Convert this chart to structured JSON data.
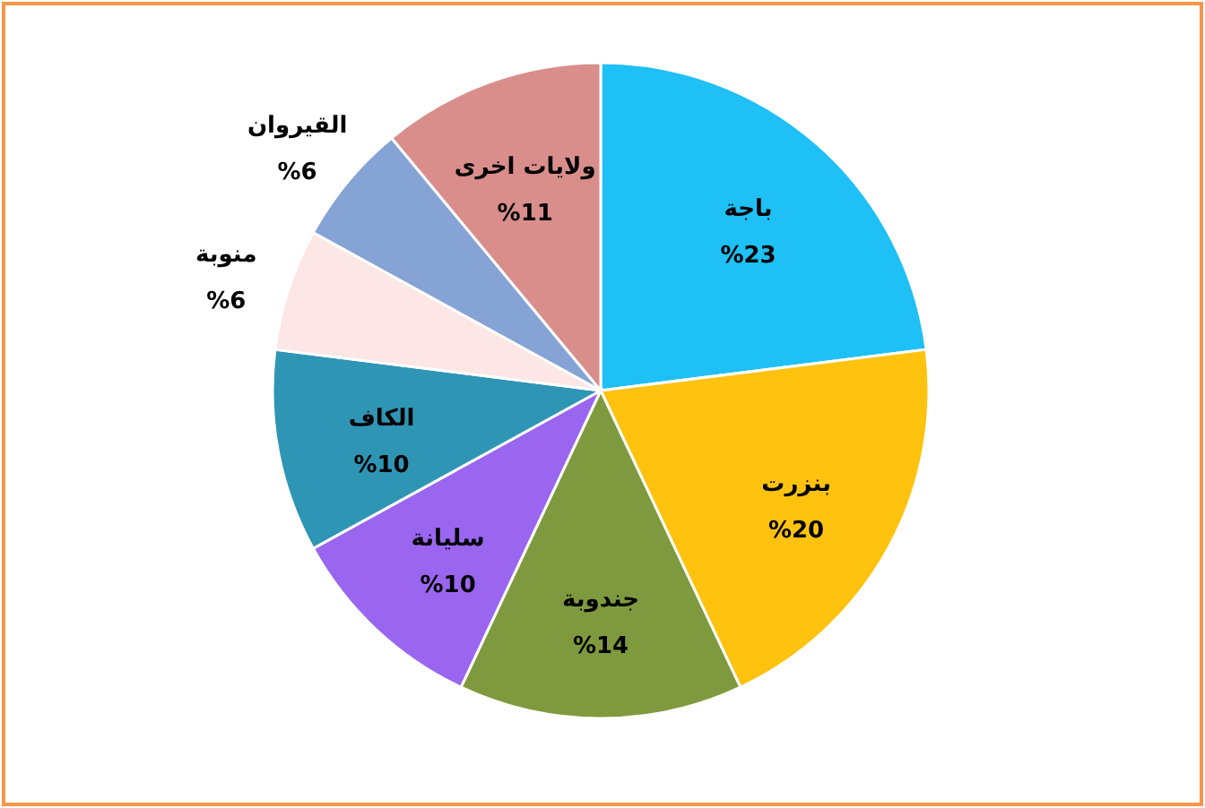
{
  "chart_data": {
    "type": "pie",
    "categories": [
      "باجة",
      "بنزرت",
      "جندوبة",
      "سليانة",
      "الكاف",
      "منوبة",
      "القيروان",
      "ولايات اخرى"
    ],
    "values": [
      23,
      20,
      14,
      10,
      10,
      6,
      6,
      11
    ],
    "colors": [
      "#1ec0f5",
      "#ffc30f",
      "#7f9a3e",
      "#9a66f0",
      "#2f95b5",
      "#fde6e6",
      "#86a3d6",
      "#d98e8c"
    ],
    "value_labels": [
      "%23",
      "%20",
      "%14",
      "%10",
      "%10",
      "%6",
      "%6",
      "%11"
    ]
  }
}
